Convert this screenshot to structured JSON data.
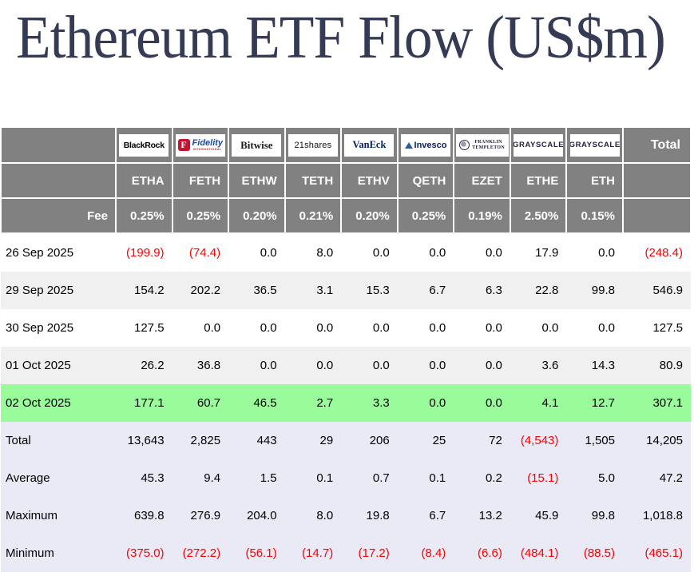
{
  "title": "Ethereum ETF Flow (US$m)",
  "colors": {
    "header_bg": "#818181",
    "header_text": "#ffffff",
    "row_plain": "#ffffff",
    "row_alt": "#f0f0f0",
    "row_highlight_green": "#99fb99",
    "row_summary_lavender": "#e9eaf6",
    "negative_red": "#fe0000",
    "title_navy": "#353b55",
    "fidelity_red": "#c41230",
    "fidelity_blue": "#1f4698",
    "vaneck_navy": "#00205b",
    "invesco_navy": "#081f62",
    "grayscale_navy": "#23233f"
  },
  "table": {
    "fee_label": "Fee",
    "total_label": "Total",
    "columns": [
      {
        "id": "blackrock",
        "provider": "BlackRock",
        "ticker": "ETHA",
        "fee": "0.25%"
      },
      {
        "id": "fidelity",
        "provider": "Fidelity",
        "logo_initial": "F",
        "logo_sub": "INTERNATIONAL",
        "ticker": "FETH",
        "fee": "0.25%"
      },
      {
        "id": "bitwise",
        "provider": "Bitwise",
        "ticker": "ETHW",
        "fee": "0.20%"
      },
      {
        "id": "21shares",
        "provider": "21shares",
        "ticker": "TETH",
        "fee": "0.21%"
      },
      {
        "id": "vaneck",
        "provider": "VanEck",
        "ticker": "ETHV",
        "fee": "0.20%"
      },
      {
        "id": "invesco",
        "provider": "Invesco",
        "ticker": "QETH",
        "fee": "0.25%"
      },
      {
        "id": "franklin",
        "provider": "Franklin Templeton",
        "logo_lines": [
          "FRANKLIN",
          "TEMPLETON"
        ],
        "ticker": "EZET",
        "fee": "0.19%"
      },
      {
        "id": "grayscale",
        "provider": "GRAYSCALE",
        "ticker": "ETHE",
        "fee": "2.50%"
      },
      {
        "id": "grayscale",
        "provider": "GRAYSCALE",
        "ticker": "ETH",
        "fee": "0.15%"
      }
    ],
    "rows": [
      {
        "label": "26 Sep 2025",
        "style": "plain",
        "values": [
          "(199.9)",
          "(74.4)",
          "0.0",
          "8.0",
          "0.0",
          "0.0",
          "0.0",
          "17.9",
          "0.0",
          "(248.4)"
        ]
      },
      {
        "label": "29 Sep 2025",
        "style": "alt",
        "values": [
          "154.2",
          "202.2",
          "36.5",
          "3.1",
          "15.3",
          "6.7",
          "6.3",
          "22.8",
          "99.8",
          "546.9"
        ]
      },
      {
        "label": "30 Sep 2025",
        "style": "plain",
        "values": [
          "127.5",
          "0.0",
          "0.0",
          "0.0",
          "0.0",
          "0.0",
          "0.0",
          "0.0",
          "0.0",
          "127.5"
        ]
      },
      {
        "label": "01 Oct 2025",
        "style": "alt",
        "values": [
          "26.2",
          "36.8",
          "0.0",
          "0.0",
          "0.0",
          "0.0",
          "0.0",
          "3.6",
          "14.3",
          "80.9"
        ]
      },
      {
        "label": "02 Oct 2025",
        "style": "highlight",
        "values": [
          "177.1",
          "60.7",
          "46.5",
          "2.7",
          "3.3",
          "0.0",
          "0.0",
          "4.1",
          "12.7",
          "307.1"
        ]
      },
      {
        "label": "Total",
        "style": "summary",
        "values": [
          "13,643",
          "2,825",
          "443",
          "29",
          "206",
          "25",
          "72",
          "(4,543)",
          "1,505",
          "14,205"
        ]
      },
      {
        "label": "Average",
        "style": "summary",
        "values": [
          "45.3",
          "9.4",
          "1.5",
          "0.1",
          "0.7",
          "0.1",
          "0.2",
          "(15.1)",
          "5.0",
          "47.2"
        ]
      },
      {
        "label": "Maximum",
        "style": "summary",
        "values": [
          "639.8",
          "276.9",
          "204.0",
          "8.0",
          "19.8",
          "6.7",
          "13.2",
          "45.9",
          "99.8",
          "1,018.8"
        ]
      },
      {
        "label": "Minimum",
        "style": "summary",
        "values": [
          "(375.0)",
          "(272.2)",
          "(56.1)",
          "(14.7)",
          "(17.2)",
          "(8.4)",
          "(6.6)",
          "(484.1)",
          "(88.5)",
          "(465.1)"
        ]
      }
    ]
  },
  "chart_data": {
    "type": "table",
    "title": "Ethereum ETF Flow (US$m)",
    "columns": [
      "ETHA",
      "FETH",
      "ETHW",
      "TETH",
      "ETHV",
      "QETH",
      "EZET",
      "ETHE",
      "ETH",
      "Total"
    ],
    "providers": [
      "BlackRock",
      "Fidelity",
      "Bitwise",
      "21shares",
      "VanEck",
      "Invesco",
      "Franklin Templeton",
      "Grayscale",
      "Grayscale",
      ""
    ],
    "fees_pct": [
      0.25,
      0.25,
      0.2,
      0.21,
      0.2,
      0.25,
      0.19,
      2.5,
      0.15,
      null
    ],
    "rows": [
      {
        "label": "26 Sep 2025",
        "values": [
          -199.9,
          -74.4,
          0.0,
          8.0,
          0.0,
          0.0,
          0.0,
          17.9,
          0.0,
          -248.4
        ]
      },
      {
        "label": "29 Sep 2025",
        "values": [
          154.2,
          202.2,
          36.5,
          3.1,
          15.3,
          6.7,
          6.3,
          22.8,
          99.8,
          546.9
        ]
      },
      {
        "label": "30 Sep 2025",
        "values": [
          127.5,
          0.0,
          0.0,
          0.0,
          0.0,
          0.0,
          0.0,
          0.0,
          0.0,
          127.5
        ]
      },
      {
        "label": "01 Oct 2025",
        "values": [
          26.2,
          36.8,
          0.0,
          0.0,
          0.0,
          0.0,
          0.0,
          3.6,
          14.3,
          80.9
        ]
      },
      {
        "label": "02 Oct 2025",
        "values": [
          177.1,
          60.7,
          46.5,
          2.7,
          3.3,
          0.0,
          0.0,
          4.1,
          12.7,
          307.1
        ]
      },
      {
        "label": "Total",
        "values": [
          13643,
          2825,
          443,
          29,
          206,
          25,
          72,
          -4543,
          1505,
          14205
        ]
      },
      {
        "label": "Average",
        "values": [
          45.3,
          9.4,
          1.5,
          0.1,
          0.7,
          0.1,
          0.2,
          -15.1,
          5.0,
          47.2
        ]
      },
      {
        "label": "Maximum",
        "values": [
          639.8,
          276.9,
          204.0,
          8.0,
          19.8,
          6.7,
          13.2,
          45.9,
          99.8,
          1018.8
        ]
      },
      {
        "label": "Minimum",
        "values": [
          -375.0,
          -272.2,
          -56.1,
          -14.7,
          -17.2,
          -8.4,
          -6.6,
          -484.1,
          -88.5,
          -465.1
        ]
      }
    ],
    "negative_format": "parentheses-red",
    "highlighted_row": "02 Oct 2025",
    "layout": {
      "grid": false,
      "legend": "none"
    }
  }
}
